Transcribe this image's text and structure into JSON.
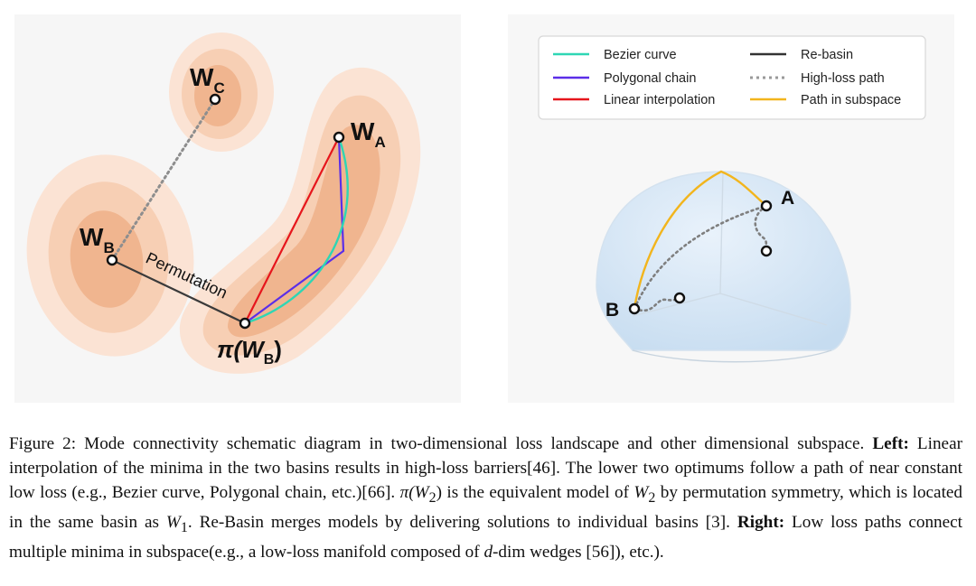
{
  "left_panel": {
    "node_a": {
      "main": "W",
      "sub": "A"
    },
    "node_b": {
      "main": "W",
      "sub": "B"
    },
    "node_c": {
      "main": "W",
      "sub": "C"
    },
    "node_pi": {
      "prefix": "π(W",
      "sub": "B",
      "suffix": ")"
    },
    "permutation_label": "Permutation"
  },
  "right_panel": {
    "point_a": "A",
    "point_b": "B"
  },
  "legend": {
    "items": [
      {
        "label": "Bezier curve",
        "color": "#2ed6b4",
        "style": "solid"
      },
      {
        "label": "Polygonal chain",
        "color": "#5b2ee8",
        "style": "solid"
      },
      {
        "label": "Linear interpolation",
        "color": "#e6161c",
        "style": "solid"
      },
      {
        "label": "Re-basin",
        "color": "#333333",
        "style": "solid"
      },
      {
        "label": "High-loss path",
        "color": "#9a9a9a",
        "style": "dotted"
      },
      {
        "label": "Path in subspace",
        "color": "#f2b51d",
        "style": "solid"
      }
    ]
  },
  "caption": {
    "figure_label": "Figure 2:",
    "intro": " Mode connectivity schematic diagram in two-dimensional loss landscape and other dimensional subspace. ",
    "left_label": "Left:",
    "left_text_1": " Linear interpolation of the minima in the two basins results in high-loss barriers[46]. The lower two optimums follow a path of near constant low loss (e.g., Bezier curve, Polygonal chain, etc.)[66]. ",
    "pi_expr": "π(W",
    "w2_sub": "2",
    "left_text_2": ") is the equivalent model of ",
    "w_letter": "W",
    "left_text_3": " by permutation symmetry, which is located in the same basin as ",
    "w1_sub": "1",
    "left_text_4": ". Re-Basin merges models by delivering solutions to individual basins [3]. ",
    "right_label": "Right:",
    "right_text_1": "  Low loss paths connect multiple minima in subspace(e.g., a low-loss manifold composed of ",
    "d_var": "d",
    "right_text_2": "-dim wedges [56]), etc.)."
  }
}
